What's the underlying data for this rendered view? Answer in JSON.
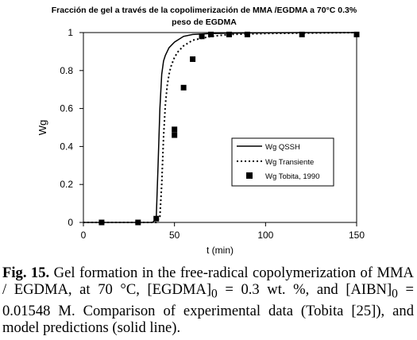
{
  "chart_data": {
    "type": "line",
    "title_lines": [
      "Fracción de gel  a través de la copolimerización de MMA /EGDMA a 70°C 0.3%",
      "peso de EGDMA"
    ],
    "xlabel": "t (min)",
    "ylabel": "Wg",
    "xlim": [
      0,
      150
    ],
    "ylim": [
      0,
      1
    ],
    "xticks": [
      "0",
      "50",
      "100",
      "150"
    ],
    "yticks": [
      "0",
      "0.2",
      "0.4",
      "0.6",
      "0.8",
      "1"
    ],
    "grid": false,
    "legend_position": "lower-right",
    "series": [
      {
        "name": "Wg QSSH",
        "style": "solid",
        "color": "#000000",
        "x": [
          0,
          38,
          40,
          41,
          42,
          43,
          44,
          45,
          47,
          50,
          55,
          60,
          70,
          80,
          90,
          100,
          120,
          150
        ],
        "y": [
          0,
          0,
          0.02,
          0.3,
          0.6,
          0.78,
          0.85,
          0.88,
          0.92,
          0.95,
          0.98,
          0.99,
          0.995,
          0.997,
          0.998,
          0.999,
          1,
          1
        ]
      },
      {
        "name": "Wg Transiente",
        "style": "dotted",
        "color": "#000000",
        "x": [
          0,
          40,
          42,
          43,
          44,
          45,
          46,
          47,
          48,
          50,
          52,
          55,
          60,
          70,
          80,
          100,
          150
        ],
        "y": [
          0,
          0,
          0.03,
          0.2,
          0.45,
          0.62,
          0.72,
          0.78,
          0.82,
          0.87,
          0.9,
          0.93,
          0.96,
          0.98,
          0.99,
          0.995,
          1
        ]
      },
      {
        "name": "Wg Tobita, 1990",
        "style": "square-markers",
        "color": "#000000",
        "x": [
          10,
          30,
          40,
          50,
          50,
          55,
          60,
          65,
          70,
          80,
          90,
          120,
          150
        ],
        "y": [
          0,
          0,
          0.02,
          0.46,
          0.49,
          0.71,
          0.86,
          0.98,
          0.99,
          0.99,
          0.99,
          0.99,
          0.99
        ]
      }
    ]
  },
  "caption": {
    "label": "Fig. 15.",
    "text_parts": [
      " Gel formation in the free-radical copolymerization of MMA / EGDMA, at 70 °C, [EGDMA]",
      "0",
      " = 0.3 wt. %, and [AIBN]",
      "0",
      " = 0.01548 M. Comparison of experimental data (Tobita [25]), and model predictions (solid line)."
    ]
  }
}
